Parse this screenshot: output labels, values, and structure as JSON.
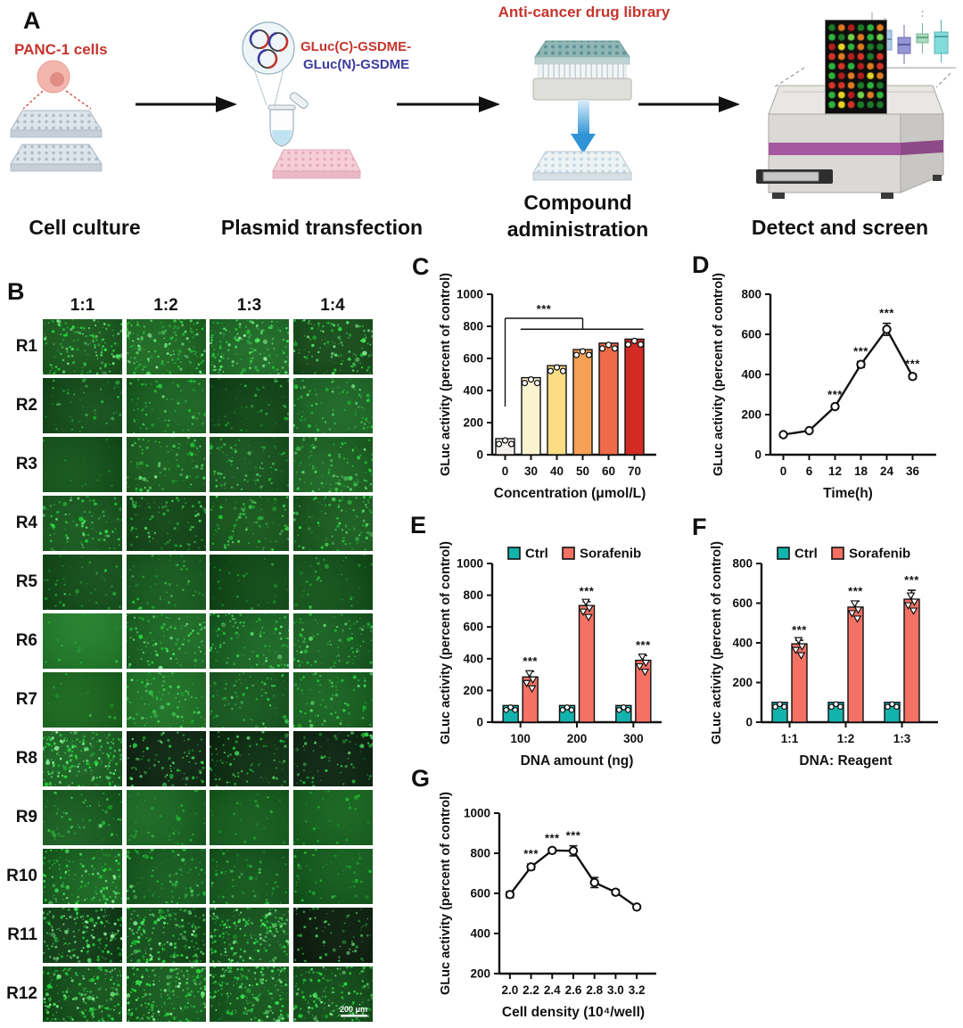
{
  "panel_a": {
    "label": "A",
    "panc1_label": "PANC-1 cells",
    "plasmid_label_1": "GLuc(C)-GSDME-",
    "plasmid_label_2": "GLuc(N)-GSDME",
    "drug_library_label": "Anti-cancer drug library",
    "steps": [
      {
        "caption": "Cell culture"
      },
      {
        "caption": "Plasmid transfection"
      },
      {
        "caption_line1": "Compound",
        "caption_line2": "administration"
      },
      {
        "caption": "Detect and screen"
      }
    ],
    "colors": {
      "annotation_red": "#c5342c",
      "annotation_blue": "#3b3b9e",
      "machine_stripe": "#a4589f"
    }
  },
  "panel_b": {
    "label": "B",
    "column_headers": [
      "1:1",
      "1:2",
      "1:3",
      "1:4"
    ],
    "row_labels": [
      "R1",
      "R2",
      "R3",
      "R4",
      "R5",
      "R6",
      "R7",
      "R8",
      "R9",
      "R10",
      "R11",
      "R12"
    ],
    "scale_bar": "200 μm",
    "cells": [
      [
        [
          "#145018",
          150,
          0.9
        ],
        [
          "#18611e",
          170,
          0.95
        ],
        [
          "#196322",
          170,
          0.95
        ],
        [
          "#114214",
          120,
          0.85
        ]
      ],
      [
        [
          "#0e4415",
          55,
          0.6
        ],
        [
          "#145a1c",
          75,
          0.7
        ],
        [
          "#093a10",
          45,
          0.55
        ],
        [
          "#175e20",
          85,
          0.7
        ]
      ],
      [
        [
          "#0d4a14",
          12,
          0.4
        ],
        [
          "#135318",
          100,
          0.8
        ],
        [
          "#114a18",
          90,
          0.7
        ],
        [
          "#175c1e",
          110,
          0.8
        ]
      ],
      [
        [
          "#124e18",
          100,
          0.75
        ],
        [
          "#0b3a10",
          85,
          0.7
        ],
        [
          "#114c16",
          95,
          0.7
        ],
        [
          "#14531a",
          100,
          0.75
        ]
      ],
      [
        [
          "#0d4413",
          45,
          0.55
        ],
        [
          "#105018",
          55,
          0.6
        ],
        [
          "#093f10",
          28,
          0.45
        ],
        [
          "#0d4914",
          38,
          0.5
        ]
      ],
      [
        [
          "#1d7826",
          15,
          0.5
        ],
        [
          "#176220",
          110,
          0.8
        ],
        [
          "#145e1f",
          100,
          0.8
        ],
        [
          "#13561c",
          100,
          0.75
        ]
      ],
      [
        [
          "#145e18",
          14,
          0.45
        ],
        [
          "#196a21",
          95,
          0.75
        ],
        [
          "#104e18",
          75,
          0.65
        ],
        [
          "#125a1b",
          75,
          0.7
        ]
      ],
      [
        [
          "#155a1d",
          210,
          1.0
        ],
        [
          "#06190a",
          85,
          0.8
        ],
        [
          "#07230c",
          85,
          0.75
        ],
        [
          "#05170a",
          75,
          0.7
        ]
      ],
      [
        [
          "#13551b",
          65,
          0.6
        ],
        [
          "#145f1d",
          40,
          0.5
        ],
        [
          "#0e5316",
          30,
          0.45
        ],
        [
          "#105a18",
          30,
          0.45
        ]
      ],
      [
        [
          "#145f1d",
          150,
          0.85
        ],
        [
          "#0f5219",
          85,
          0.65
        ],
        [
          "#0d4d16",
          65,
          0.6
        ],
        [
          "#0d5317",
          55,
          0.55
        ]
      ],
      [
        [
          "#093310",
          170,
          0.95
        ],
        [
          "#0d4515",
          190,
          0.95
        ],
        [
          "#0f4a17",
          210,
          0.95
        ],
        [
          "#040f06",
          65,
          0.8
        ]
      ],
      [
        [
          "#0e4815",
          190,
          0.9
        ],
        [
          "#115419",
          210,
          0.95
        ],
        [
          "#0e4d16",
          190,
          0.9
        ],
        [
          "#0c4213",
          160,
          0.85
        ]
      ]
    ]
  },
  "chart_data": [
    {
      "id": "c",
      "label": "C",
      "type": "bar",
      "ylabel": "GLuc activity (percent of control)",
      "xlabel": "Concentration (μmol/L)",
      "ylim": [
        0,
        1000
      ],
      "yticks": [
        0,
        200,
        400,
        600,
        800,
        1000
      ],
      "categories": [
        "0",
        "30",
        "40",
        "50",
        "60",
        "70"
      ],
      "values": [
        100,
        480,
        555,
        655,
        695,
        720
      ],
      "bar_colors": [
        "#f4f1ec",
        "#fbf3cf",
        "#fadc82",
        "#f5a055",
        "#ef6a48",
        "#d42a24"
      ],
      "bracket": {
        "stars": "***",
        "from_cat": 0,
        "start_val": 300,
        "top_val": 850,
        "to_cat": 3,
        "drop_val": 782,
        "span_from_cat": 0.6,
        "span_to_cat": 5.35
      }
    },
    {
      "id": "d",
      "label": "D",
      "type": "line",
      "ylabel": "GLuc activity (percent of control)",
      "xlabel": "Time(h)",
      "ylim": [
        0,
        800
      ],
      "yticks": [
        0,
        200,
        400,
        600,
        800
      ],
      "categories": [
        "0",
        "6",
        "12",
        "18",
        "24",
        "36"
      ],
      "values": [
        100,
        120,
        240,
        450,
        625,
        390
      ],
      "errors": [
        0,
        0,
        10,
        15,
        30,
        12
      ],
      "sig": [
        "",
        "",
        "***",
        "***",
        "***",
        "***"
      ]
    },
    {
      "id": "e",
      "label": "E",
      "type": "grouped_bar",
      "ylabel": "GLuc activity (percent of control)",
      "xlabel": "DNA amount (ng)",
      "ylim": [
        0,
        1000
      ],
      "yticks": [
        0,
        200,
        400,
        600,
        800,
        1000
      ],
      "categories": [
        "100",
        "200",
        "300"
      ],
      "legend": true,
      "series": [
        {
          "name": "Ctrl",
          "color": "#14b2ad",
          "values": [
            105,
            105,
            105
          ],
          "errors": [
            0,
            0,
            0
          ],
          "sig": [
            "",
            "",
            ""
          ]
        },
        {
          "name": "Sorafenib",
          "color": "#f47164",
          "values": [
            285,
            735,
            390
          ],
          "errors": [
            35,
            25,
            30
          ],
          "sig": [
            "***",
            "***",
            "***"
          ]
        }
      ]
    },
    {
      "id": "f",
      "label": "F",
      "type": "grouped_bar",
      "ylabel": "GLuc activity (percent of control)",
      "xlabel": "DNA: Reagent",
      "ylim": [
        0,
        800
      ],
      "yticks": [
        0,
        200,
        400,
        600,
        800
      ],
      "categories": [
        "1:1",
        "1:2",
        "1:3"
      ],
      "legend": true,
      "series": [
        {
          "name": "Ctrl",
          "color": "#14b2ad",
          "values": [
            100,
            100,
            100
          ],
          "errors": [
            0,
            0,
            0
          ],
          "sig": [
            "",
            "",
            ""
          ]
        },
        {
          "name": "Sorafenib",
          "color": "#f47164",
          "values": [
            395,
            580,
            620
          ],
          "errors": [
            18,
            30,
            45
          ],
          "sig": [
            "***",
            "***",
            "***"
          ]
        }
      ]
    },
    {
      "id": "g",
      "label": "G",
      "type": "line",
      "ylabel": "GLuc activity (percent of control)",
      "xlabel": "Cell density (10⁴/well)",
      "ylim": [
        200,
        1000
      ],
      "yticks": [
        200,
        400,
        600,
        800,
        1000
      ],
      "categories": [
        "2.0",
        "2.2",
        "2.4",
        "2.6",
        "2.8",
        "3.0",
        "3.2"
      ],
      "values": [
        594,
        732,
        814,
        812,
        654,
        606,
        532
      ],
      "errors": [
        15,
        14,
        10,
        25,
        25,
        12,
        8
      ],
      "sig": [
        "",
        "***",
        "***",
        "***",
        "",
        "",
        ""
      ]
    }
  ]
}
